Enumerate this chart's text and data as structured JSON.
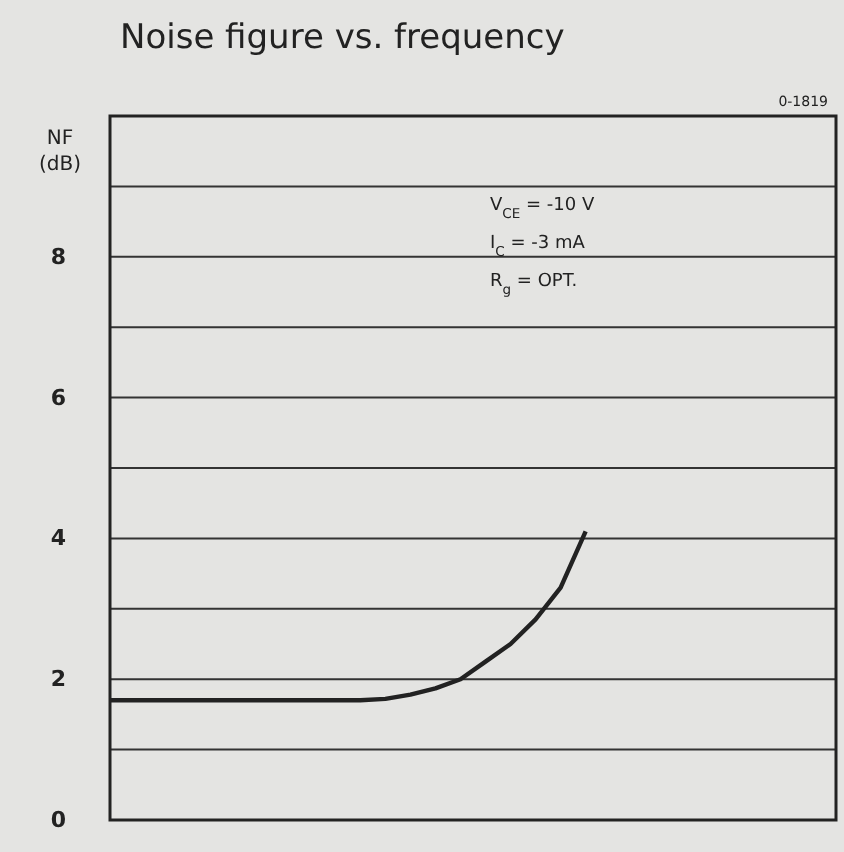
{
  "chart_data": {
    "type": "line",
    "title": "Noise figure vs. frequency",
    "ylabel": "NF (dB)",
    "categories": [
      null,
      null,
      null,
      null,
      null,
      null,
      null,
      null,
      null,
      null,
      null,
      null,
      null,
      null,
      null,
      null,
      null,
      null,
      null,
      null,
      null,
      null,
      null,
      null,
      null,
      null,
      null,
      null,
      null,
      null
    ],
    "series": [
      {
        "color": "#222222",
        "values": [
          1.7,
          1.7,
          1.7,
          1.7,
          1.7,
          1.7,
          1.7,
          1.7,
          1.7,
          1.7,
          1.7,
          1.72,
          1.78,
          1.87,
          2.0,
          2.25,
          2.5,
          2.85,
          3.3,
          4.1,
          null,
          null,
          null,
          null,
          null,
          null,
          null,
          null,
          null,
          null
        ]
      }
    ],
    "ylim": [
      0,
      10
    ],
    "yticks": [
      0,
      {
        "value": 1,
        "label": null
      },
      2,
      {
        "value": 3,
        "label": null
      },
      4,
      {
        "value": 5,
        "label": null
      },
      6,
      {
        "value": 7,
        "label": null
      },
      8,
      {
        "value": 9,
        "label": null
      },
      {
        "value": 10,
        "label": null
      }
    ],
    "grid": "y",
    "marker": "none",
    "line_style": "solid",
    "annotations": [
      "0-1819",
      "V$_{CE}$ = -10 V",
      "I$_{C}$ = -3 mA",
      "R$_{g}$ = OPT."
    ]
  }
}
